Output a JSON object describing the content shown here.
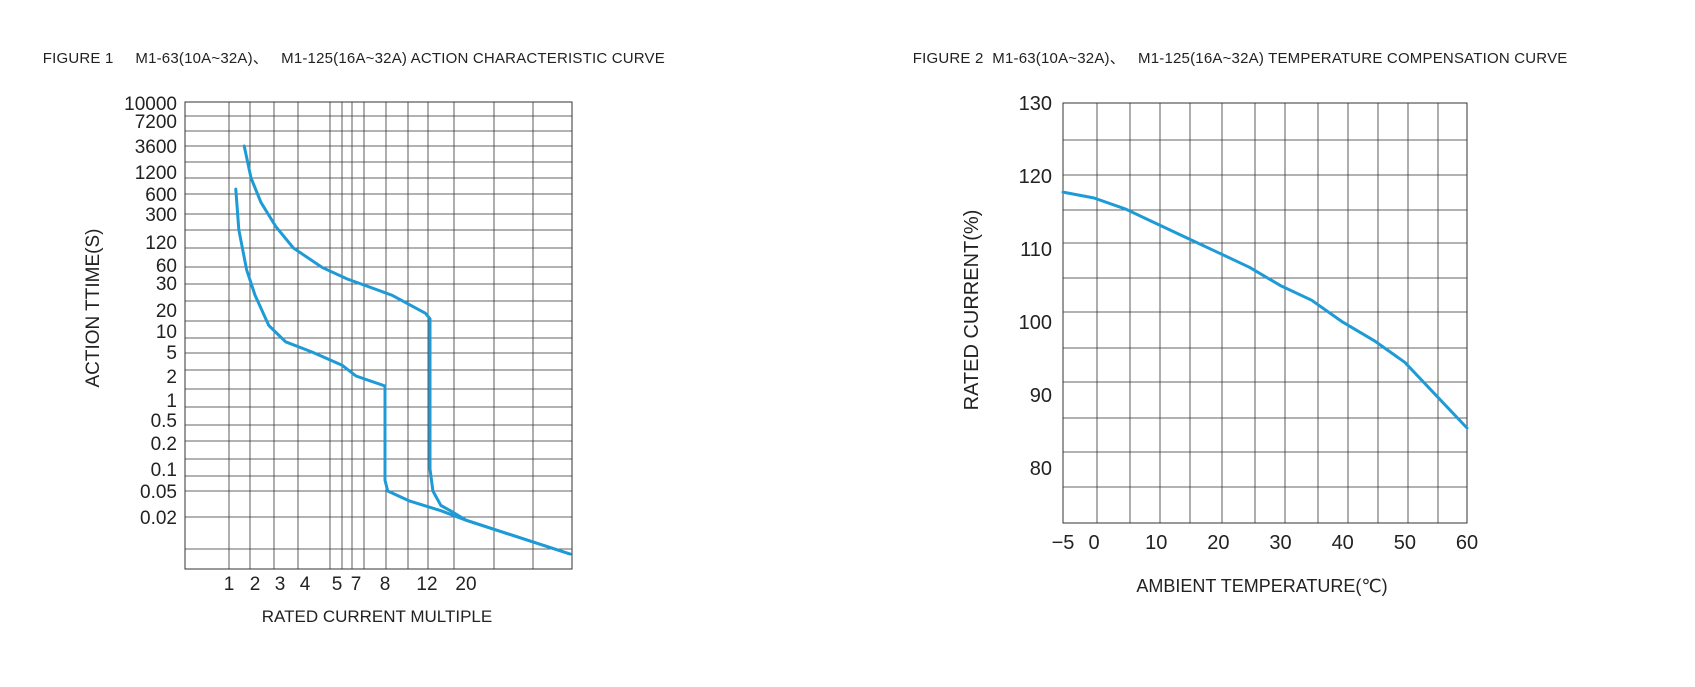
{
  "figures": {
    "fig1": {
      "label": "FIGURE 1",
      "title": "M1-63(10A~32A)、   M1-125(16A~32A) ACTION CHARACTERISTIC CURVE"
    },
    "fig2": {
      "label": "FIGURE 2",
      "title": "M1-63(10A~32A)、   M1-125(16A~32A) TEMPERATURE COMPENSATION CURVE"
    }
  },
  "chart_data": [
    {
      "type": "line",
      "title": "M1-63(10A~32A)、 M1-125(16A~32A) ACTION CHARACTERISTIC CURVE",
      "xlabel": "RATED CURRENT MULTIPLE",
      "ylabel": "ACTION TTIME(S)",
      "x_tick_labels": [
        "1",
        "2",
        "3",
        "4",
        "5",
        "7",
        "8",
        "12",
        "20"
      ],
      "y_tick_labels": [
        "10000",
        "7200",
        "3600",
        "1200",
        "600",
        "300",
        "120",
        "60",
        "30",
        "20",
        "10",
        "5",
        "2",
        "1",
        "0.5",
        "0.2",
        "0.1",
        "0.05",
        "0.02"
      ],
      "grid": true,
      "color": "#1e9bd7",
      "series": [
        {
          "x": [
            1.2,
            1.3,
            1.6,
            2.0,
            2.5,
            3.2,
            4.2,
            5.5,
            7.0,
            8.0,
            8.0,
            8.2,
            10.0,
            14.0,
            20.0,
            40.0
          ],
          "y": [
            700,
            180,
            50,
            25,
            12,
            7,
            5,
            3,
            2,
            1.5,
            0.07,
            0.05,
            0.035,
            0.025,
            0.018,
            0.006
          ]
        },
        {
          "x": [
            1.5,
            1.8,
            2.2,
            2.8,
            3.5,
            4.5,
            6.0,
            8.5,
            11.5,
            12.0,
            12.0,
            12.5,
            14.0,
            16.0,
            20.0,
            40.0
          ],
          "y": [
            3600,
            1000,
            450,
            200,
            100,
            55,
            35,
            25,
            18,
            15,
            0.1,
            0.05,
            0.03,
            0.025,
            0.018,
            0.006
          ]
        }
      ]
    },
    {
      "type": "line",
      "title": "M1-63(10A~32A)、 M1-125(16A~32A) TEMPERATURE COMPENSATION CURVE",
      "xlabel": "AMBIENT TEMPERATURE(℃)",
      "ylabel": "RATED CURRENT(%)",
      "x_ticks": [
        -5,
        0,
        10,
        20,
        30,
        40,
        50,
        60
      ],
      "y_ticks": [
        80,
        90,
        100,
        110,
        120,
        130
      ],
      "xlim": [
        -5,
        60
      ],
      "ylim": [
        72.5,
        130
      ],
      "grid": true,
      "color": "#1e9bd7",
      "series": [
        {
          "x": [
            -5,
            0,
            5,
            10,
            15,
            20,
            25,
            30,
            35,
            40,
            45,
            50,
            55,
            60
          ],
          "y": [
            117.8,
            117,
            115.5,
            113.5,
            111.5,
            109.5,
            107.5,
            105,
            103,
            100,
            97.5,
            94.5,
            90,
            85.5
          ]
        }
      ]
    }
  ]
}
